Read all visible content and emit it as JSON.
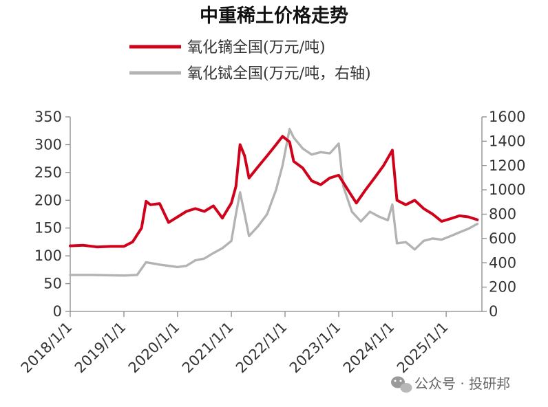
{
  "chart_data": {
    "type": "line",
    "title": "中重稀土价格走势",
    "x_tick_labels": [
      "2018/1/1",
      "2019/1/1",
      "2020/1/1",
      "2021/1/1",
      "2022/1/1",
      "2023/1/1",
      "2024/1/1",
      "2025/1/1"
    ],
    "x_range": [
      "2018-01-01",
      "2025-09-01"
    ],
    "y_left": {
      "range": [
        0,
        350
      ],
      "ticks": [
        0,
        50,
        100,
        150,
        200,
        250,
        300,
        350
      ]
    },
    "y_right": {
      "range": [
        0,
        1600
      ],
      "ticks": [
        0,
        200,
        400,
        600,
        800,
        1000,
        1200,
        1400,
        1600
      ]
    },
    "grid": false,
    "legend_position": "top",
    "series": [
      {
        "name": "氧化镝全国(万元/吨)",
        "axis": "left",
        "color": "#d0021b",
        "points": [
          [
            "2018-01-01",
            118
          ],
          [
            "2018-04-01",
            119
          ],
          [
            "2018-07-01",
            116
          ],
          [
            "2018-10-01",
            117
          ],
          [
            "2019-01-01",
            117
          ],
          [
            "2019-03-01",
            125
          ],
          [
            "2019-05-01",
            150
          ],
          [
            "2019-06-01",
            198
          ],
          [
            "2019-07-01",
            192
          ],
          [
            "2019-09-01",
            194
          ],
          [
            "2019-11-01",
            160
          ],
          [
            "2020-01-01",
            170
          ],
          [
            "2020-03-01",
            180
          ],
          [
            "2020-05-01",
            185
          ],
          [
            "2020-07-01",
            180
          ],
          [
            "2020-09-01",
            190
          ],
          [
            "2020-11-01",
            168
          ],
          [
            "2021-01-01",
            195
          ],
          [
            "2021-02-01",
            225
          ],
          [
            "2021-03-01",
            300
          ],
          [
            "2021-04-01",
            280
          ],
          [
            "2021-05-01",
            240
          ],
          [
            "2021-07-01",
            260
          ],
          [
            "2021-09-01",
            280
          ],
          [
            "2021-11-01",
            300
          ],
          [
            "2021-12-15",
            315
          ],
          [
            "2022-02-01",
            305
          ],
          [
            "2022-03-01",
            270
          ],
          [
            "2022-05-01",
            258
          ],
          [
            "2022-07-01",
            235
          ],
          [
            "2022-09-01",
            228
          ],
          [
            "2022-11-01",
            240
          ],
          [
            "2023-01-01",
            245
          ],
          [
            "2023-03-01",
            220
          ],
          [
            "2023-05-01",
            195
          ],
          [
            "2023-07-01",
            218
          ],
          [
            "2023-09-01",
            240
          ],
          [
            "2023-11-01",
            262
          ],
          [
            "2024-01-01",
            290
          ],
          [
            "2024-02-01",
            200
          ],
          [
            "2024-04-01",
            192
          ],
          [
            "2024-06-01",
            200
          ],
          [
            "2024-08-01",
            185
          ],
          [
            "2024-10-01",
            175
          ],
          [
            "2024-12-01",
            162
          ],
          [
            "2025-02-01",
            167
          ],
          [
            "2025-04-01",
            172
          ],
          [
            "2025-06-01",
            170
          ],
          [
            "2025-08-01",
            165
          ]
        ]
      },
      {
        "name": "氧化铽全国(万元/吨，右轴)",
        "axis": "right",
        "color": "#b3b3b3",
        "points": [
          [
            "2018-01-01",
            300
          ],
          [
            "2018-06-01",
            300
          ],
          [
            "2019-01-01",
            295
          ],
          [
            "2019-04-01",
            300
          ],
          [
            "2019-06-01",
            405
          ],
          [
            "2019-09-01",
            385
          ],
          [
            "2020-01-01",
            365
          ],
          [
            "2020-03-01",
            375
          ],
          [
            "2020-05-01",
            420
          ],
          [
            "2020-07-01",
            435
          ],
          [
            "2020-09-01",
            480
          ],
          [
            "2020-11-01",
            520
          ],
          [
            "2021-01-01",
            580
          ],
          [
            "2021-02-01",
            800
          ],
          [
            "2021-03-01",
            980
          ],
          [
            "2021-04-01",
            800
          ],
          [
            "2021-05-01",
            620
          ],
          [
            "2021-07-01",
            700
          ],
          [
            "2021-09-01",
            800
          ],
          [
            "2021-11-01",
            1000
          ],
          [
            "2021-12-15",
            1200
          ],
          [
            "2022-02-01",
            1500
          ],
          [
            "2022-03-01",
            1430
          ],
          [
            "2022-05-01",
            1340
          ],
          [
            "2022-07-01",
            1290
          ],
          [
            "2022-09-01",
            1310
          ],
          [
            "2022-11-01",
            1300
          ],
          [
            "2023-01-01",
            1380
          ],
          [
            "2023-02-01",
            1030
          ],
          [
            "2023-04-01",
            820
          ],
          [
            "2023-06-01",
            740
          ],
          [
            "2023-08-01",
            820
          ],
          [
            "2023-10-01",
            780
          ],
          [
            "2023-12-01",
            750
          ],
          [
            "2024-01-01",
            880
          ],
          [
            "2024-02-01",
            560
          ],
          [
            "2024-04-01",
            570
          ],
          [
            "2024-06-01",
            510
          ],
          [
            "2024-08-01",
            580
          ],
          [
            "2024-10-01",
            600
          ],
          [
            "2024-12-01",
            590
          ],
          [
            "2025-02-01",
            620
          ],
          [
            "2025-04-01",
            650
          ],
          [
            "2025-06-01",
            680
          ],
          [
            "2025-08-01",
            720
          ]
        ]
      }
    ]
  },
  "watermark": {
    "text": "公众号 · 投研邦",
    "icon": "wechat-icon"
  }
}
